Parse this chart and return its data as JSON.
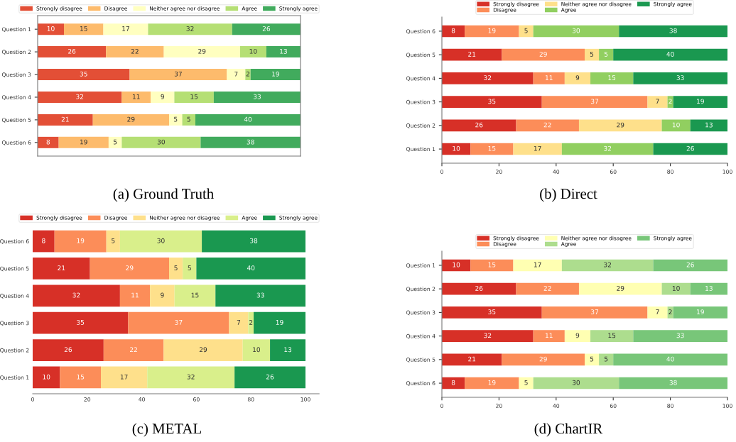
{
  "chart_data": [
    {
      "type": "bar",
      "orientation": "horizontal",
      "stacked": true,
      "title": "(a) Ground Truth",
      "categories": [
        "Question 1",
        "Question 2",
        "Question 3",
        "Question 4",
        "Question 5",
        "Question 6"
      ],
      "tick_labels": "y",
      "legend": "top",
      "data_labels": true,
      "grid": false,
      "series": [
        {
          "name": "Strongly disagree",
          "color": "#e34f36",
          "values": [
            10,
            26,
            35,
            32,
            21,
            8
          ]
        },
        {
          "name": "Disagree",
          "color": "#fdbb6c",
          "values": [
            15,
            22,
            37,
            11,
            29,
            19
          ]
        },
        {
          "name": "Neither agree nor disagree",
          "color": "#ffffc0",
          "values": [
            17,
            29,
            7,
            9,
            5,
            5
          ]
        },
        {
          "name": "Agree",
          "color": "#b5df74",
          "values": [
            32,
            10,
            2,
            15,
            5,
            30
          ]
        },
        {
          "name": "Strongly agree",
          "color": "#41ab5d",
          "values": [
            26,
            13,
            19,
            33,
            40,
            38
          ]
        }
      ]
    },
    {
      "type": "bar",
      "orientation": "horizontal",
      "stacked": true,
      "title": "(b) Direct",
      "categories": [
        "Question 6",
        "Question 5",
        "Question 4",
        "Question 3",
        "Question 2",
        "Question 1"
      ],
      "xlim": [
        0,
        100
      ],
      "xticks": [
        0,
        20,
        40,
        60,
        80,
        100
      ],
      "legend": "top",
      "data_labels": true,
      "grid": false,
      "series": [
        {
          "name": "Strongly disagree",
          "color": "#d73027",
          "values": [
            8,
            21,
            32,
            35,
            26,
            10
          ]
        },
        {
          "name": "Disagree",
          "color": "#fc8d59",
          "values": [
            19,
            29,
            11,
            37,
            22,
            15
          ]
        },
        {
          "name": "Neither agree nor disagree",
          "color": "#fee08b",
          "values": [
            5,
            5,
            9,
            7,
            29,
            17
          ]
        },
        {
          "name": "Agree",
          "color": "#91cf60",
          "values": [
            30,
            5,
            15,
            2,
            10,
            32
          ]
        },
        {
          "name": "Strongly agree",
          "color": "#1a9850",
          "values": [
            38,
            40,
            33,
            19,
            13,
            26
          ]
        }
      ]
    },
    {
      "type": "bar",
      "orientation": "horizontal",
      "stacked": true,
      "title": "(c) METAL",
      "categories": [
        "Question 6",
        "Question 5",
        "Question 4",
        "Question 3",
        "Question 2",
        "Question 1"
      ],
      "xlim": [
        0,
        100
      ],
      "xticks": [
        0,
        20,
        40,
        60,
        80,
        100
      ],
      "legend": "top",
      "data_labels": true,
      "grid": false,
      "series": [
        {
          "name": "Strongly disagree",
          "color": "#d73027",
          "values": [
            8,
            21,
            32,
            35,
            26,
            10
          ]
        },
        {
          "name": "Disagree",
          "color": "#fc8d59",
          "values": [
            19,
            29,
            11,
            37,
            22,
            15
          ]
        },
        {
          "name": "Neither agree nor disagree",
          "color": "#fee08b",
          "values": [
            5,
            5,
            9,
            7,
            29,
            17
          ]
        },
        {
          "name": "Agree",
          "color": "#d9ef8b",
          "values": [
            30,
            5,
            15,
            2,
            10,
            32
          ]
        },
        {
          "name": "Strongly agree",
          "color": "#1a9850",
          "values": [
            38,
            40,
            33,
            19,
            13,
            26
          ]
        }
      ]
    },
    {
      "type": "bar",
      "orientation": "horizontal",
      "stacked": true,
      "title": "(d) ChartIR",
      "categories": [
        "Question 1",
        "Question 2",
        "Question 3",
        "Question 4",
        "Question 5",
        "Question 6"
      ],
      "xlim": [
        0,
        100
      ],
      "xticks": [
        0,
        20,
        40,
        60,
        80,
        100
      ],
      "legend": "top",
      "data_labels": true,
      "grid": false,
      "series": [
        {
          "name": "Strongly disagree",
          "color": "#d73027",
          "values": [
            10,
            26,
            35,
            32,
            21,
            8
          ]
        },
        {
          "name": "Disagree",
          "color": "#fc8d59",
          "values": [
            15,
            22,
            37,
            11,
            29,
            19
          ]
        },
        {
          "name": "Neither agree nor disagree",
          "color": "#ffffb2",
          "values": [
            17,
            29,
            7,
            9,
            5,
            5
          ]
        },
        {
          "name": "Agree",
          "color": "#addd8e",
          "values": [
            32,
            10,
            2,
            15,
            5,
            30
          ]
        },
        {
          "name": "Strongly agree",
          "color": "#78c679",
          "values": [
            26,
            13,
            19,
            33,
            40,
            38
          ]
        }
      ]
    }
  ]
}
